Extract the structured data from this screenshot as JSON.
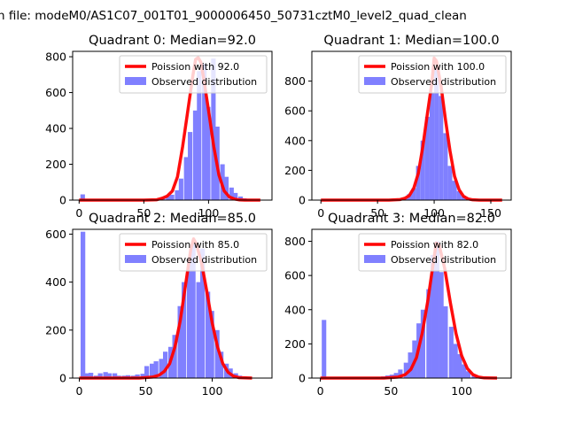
{
  "figure": {
    "suptitle": "n file: modeM0/AS1C07_001T01_9000006450_50731cztM0_level2_quad_clean"
  },
  "colors": {
    "poisson_line": "#ff0000",
    "observed_bars": "#8080ff"
  },
  "chart_data": [
    {
      "type": "bar",
      "title": "Quadrant 0: Median=92.0",
      "xlim": [
        -5,
        149
      ],
      "ylim": [
        0,
        830
      ],
      "xticks": [
        0,
        50,
        100
      ],
      "yticks": [
        0,
        200,
        400,
        600,
        800
      ],
      "legend": [
        "Poission with 92.0",
        "Observed distribution"
      ],
      "legend_position": "top-right",
      "bin_width": 3.5,
      "observed": {
        "x": [
          1,
          4,
          7,
          11,
          14,
          18,
          21,
          25,
          28,
          32,
          35,
          39,
          42,
          46,
          49,
          53,
          56,
          60,
          63,
          67,
          70,
          74,
          77,
          81,
          84,
          88,
          91,
          95,
          98,
          102,
          105,
          109,
          112,
          116,
          119,
          123,
          126,
          130,
          133,
          137
        ],
        "values": [
          32,
          0,
          0,
          0,
          0,
          0,
          0,
          0,
          0,
          0,
          0,
          0,
          0,
          0,
          0,
          0,
          2,
          8,
          14,
          22,
          30,
          55,
          120,
          240,
          380,
          500,
          720,
          760,
          520,
          790,
          410,
          200,
          130,
          70,
          40,
          20,
          10,
          5,
          2,
          1
        ]
      },
      "poisson": {
        "name": "Poission with 92.0",
        "x": [
          0,
          50,
          60,
          64,
          68,
          72,
          76,
          80,
          84,
          88,
          90,
          92,
          94,
          96,
          100,
          104,
          108,
          112,
          116,
          120,
          124,
          128,
          140
        ],
        "y": [
          0,
          0,
          2,
          10,
          22,
          50,
          130,
          300,
          500,
          700,
          785,
          795,
          770,
          690,
          500,
          300,
          140,
          52,
          18,
          6,
          1,
          0,
          0
        ]
      }
    },
    {
      "type": "bar",
      "title": "Quadrant 1: Median=100.0",
      "xlim": [
        -8,
        168
      ],
      "ylim": [
        0,
        1000
      ],
      "xticks": [
        0,
        50,
        100,
        150
      ],
      "yticks": [
        0,
        200,
        400,
        600,
        800
      ],
      "legend": [
        "Poission with 100.0",
        "Observed distribution"
      ],
      "legend_position": "top-right",
      "bin_width": 4,
      "observed": {
        "x": [
          0,
          4,
          8,
          12,
          16,
          20,
          24,
          28,
          32,
          36,
          40,
          44,
          48,
          52,
          56,
          60,
          64,
          68,
          72,
          76,
          80,
          84,
          88,
          92,
          96,
          100,
          104,
          108,
          112,
          116,
          120,
          124,
          128,
          132,
          136,
          140,
          144,
          148,
          152,
          156
        ],
        "values": [
          0,
          0,
          0,
          0,
          0,
          0,
          0,
          0,
          0,
          0,
          0,
          0,
          0,
          0,
          0,
          0,
          0,
          0,
          10,
          40,
          80,
          230,
          400,
          560,
          720,
          880,
          700,
          450,
          230,
          130,
          60,
          30,
          15,
          5,
          0,
          0,
          0,
          0,
          0,
          0
        ]
      },
      "poisson": {
        "name": "Poission with 100.0",
        "x": [
          0,
          60,
          70,
          74,
          78,
          82,
          86,
          90,
          94,
          98,
          100,
          102,
          106,
          110,
          114,
          118,
          122,
          126,
          130,
          134,
          140,
          160
        ],
        "y": [
          0,
          0,
          4,
          12,
          30,
          80,
          180,
          360,
          580,
          790,
          955,
          935,
          770,
          540,
          330,
          160,
          70,
          25,
          8,
          2,
          0,
          0
        ]
      }
    },
    {
      "type": "bar",
      "title": "Quadrant 2: Median=85.0",
      "xlim": [
        -5,
        145
      ],
      "ylim": [
        0,
        620
      ],
      "xticks": [
        0,
        50,
        100
      ],
      "yticks": [
        0,
        200,
        400,
        600
      ],
      "legend": [
        "Poission with 85.0",
        "Observed distribution"
      ],
      "legend_position": "top-right",
      "bin_width": 3.5,
      "observed": {
        "x": [
          1,
          4,
          7,
          11,
          14,
          18,
          21,
          25,
          28,
          32,
          35,
          39,
          42,
          46,
          49,
          53,
          56,
          60,
          63,
          67,
          70,
          74,
          77,
          81,
          84,
          88,
          91,
          95,
          98,
          102,
          105,
          109,
          112,
          116,
          119,
          123,
          126,
          130,
          133,
          137
        ],
        "values": [
          610,
          20,
          22,
          10,
          20,
          25,
          20,
          20,
          10,
          10,
          12,
          10,
          15,
          18,
          50,
          60,
          70,
          80,
          110,
          130,
          180,
          300,
          400,
          500,
          560,
          400,
          540,
          360,
          280,
          200,
          110,
          60,
          40,
          20,
          10,
          5,
          2,
          1,
          0,
          0
        ]
      },
      "poisson": {
        "name": "Poission with 85.0",
        "x": [
          0,
          45,
          55,
          60,
          64,
          68,
          72,
          76,
          80,
          84,
          86,
          88,
          92,
          96,
          100,
          104,
          108,
          112,
          116,
          120,
          130
        ],
        "y": [
          0,
          0,
          4,
          12,
          28,
          60,
          130,
          240,
          390,
          540,
          580,
          560,
          480,
          360,
          230,
          130,
          60,
          24,
          8,
          2,
          0
        ]
      }
    },
    {
      "type": "bar",
      "title": "Quadrant 3: Median=82.0",
      "xlim": [
        -6,
        135
      ],
      "ylim": [
        0,
        870
      ],
      "xticks": [
        0,
        50,
        100
      ],
      "yticks": [
        0,
        200,
        400,
        600,
        800
      ],
      "legend": [
        "Poission with 82.0",
        "Observed distribution"
      ],
      "legend_position": "top-right",
      "bin_width": 3.2,
      "observed": {
        "x": [
          1,
          4,
          7,
          11,
          14,
          17,
          20,
          23,
          27,
          30,
          33,
          36,
          39,
          43,
          46,
          49,
          52,
          55,
          59,
          62,
          65,
          68,
          71,
          75,
          78,
          81,
          84,
          87,
          91,
          94,
          97,
          100,
          103,
          107,
          110,
          113,
          116,
          119,
          123,
          126
        ],
        "values": [
          340,
          0,
          0,
          0,
          0,
          0,
          0,
          0,
          0,
          0,
          0,
          0,
          5,
          10,
          15,
          20,
          30,
          50,
          90,
          150,
          220,
          320,
          400,
          520,
          720,
          800,
          620,
          420,
          300,
          200,
          140,
          80,
          40,
          20,
          10,
          5,
          2,
          1,
          0,
          0
        ]
      },
      "poisson": {
        "name": "Poission with 82.0",
        "x": [
          0,
          45,
          55,
          60,
          64,
          68,
          72,
          76,
          80,
          82,
          84,
          88,
          92,
          96,
          100,
          104,
          108,
          112,
          116,
          125
        ],
        "y": [
          0,
          0,
          6,
          20,
          50,
          120,
          260,
          450,
          680,
          790,
          780,
          640,
          440,
          260,
          130,
          56,
          20,
          6,
          1,
          0
        ]
      }
    }
  ]
}
